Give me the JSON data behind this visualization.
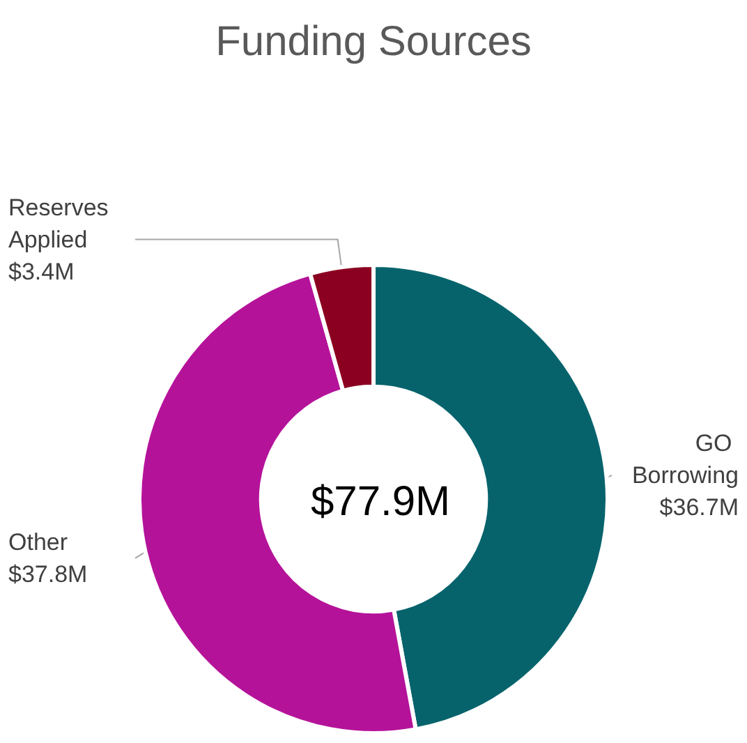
{
  "chart_data": {
    "type": "donut",
    "title": "Funding Sources",
    "categories": [
      "GO Borrowing",
      "Other",
      "Reserves Applied"
    ],
    "values": [
      36.7,
      37.8,
      3.4
    ],
    "colors": [
      "#06636c",
      "#b5129a",
      "#8b0020"
    ],
    "value_labels": [
      "$36.7M",
      "$37.8M",
      "$3.4M"
    ],
    "annotations": [
      "$77.9M"
    ]
  }
}
